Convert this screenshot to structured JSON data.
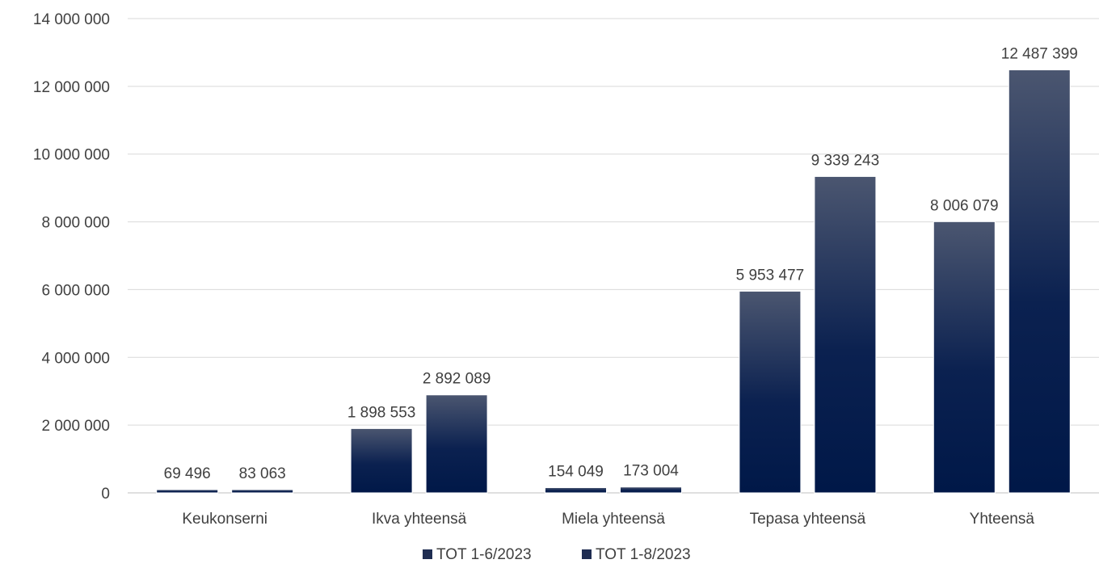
{
  "chart_data": {
    "type": "bar",
    "title": "",
    "xlabel": "",
    "ylabel": "",
    "categories": [
      "Keukonserni",
      "Ikva yhteensä",
      "Miela yhteensä",
      "Tepasa yhteensä",
      "Yhteensä"
    ],
    "series": [
      {
        "name": "TOT 1-6/2023",
        "values": [
          69496,
          1898553,
          154049,
          5953477,
          8006079
        ],
        "labels": [
          "69 496",
          "1 898 553",
          "154 049",
          "5 953 477",
          "8 006 079"
        ]
      },
      {
        "name": "TOT 1-8/2023",
        "values": [
          83063,
          2892089,
          173004,
          9339243,
          12487399
        ],
        "labels": [
          "83 063",
          "2 892 089",
          "173 004",
          "9 339 243",
          "12 487 399"
        ]
      }
    ],
    "ylim": [
      0,
      14000000
    ],
    "y_ticks": [
      0,
      2000000,
      4000000,
      6000000,
      8000000,
      10000000,
      12000000,
      14000000
    ],
    "y_tick_labels": [
      "0",
      "2 000 000",
      "4 000 000",
      "6 000 000",
      "8 000 000",
      "10 000 000",
      "12 000 000",
      "14 000 000"
    ],
    "grid": true,
    "legend_position": "bottom",
    "colors": {
      "bar_top": "#4b5670",
      "bar_bottom": "#001848",
      "legend_swatch": "#1f2d52",
      "text": "#404040",
      "grid": "#d9d9d9"
    }
  }
}
